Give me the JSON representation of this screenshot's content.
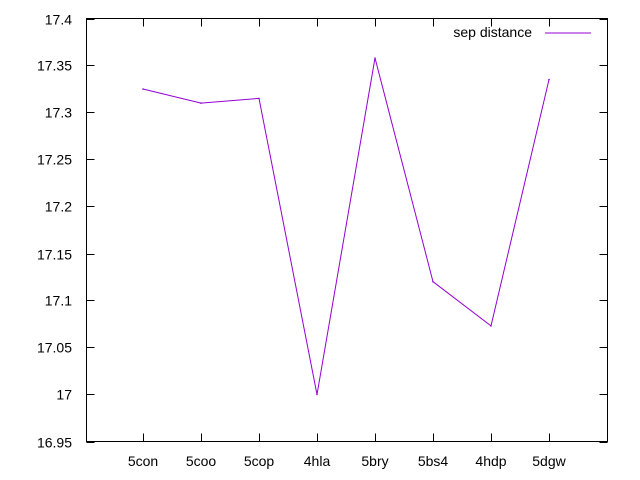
{
  "chart_data": {
    "type": "line",
    "title": "",
    "xlabel": "",
    "ylabel": "",
    "categories": [
      "5con",
      "5coo",
      "5cop",
      "4hla",
      "5bry",
      "5bs4",
      "4hdp",
      "5dgw"
    ],
    "series": [
      {
        "name": "sep distance",
        "color": "#9400d3",
        "values": [
          17.325,
          17.31,
          17.315,
          17.0,
          17.358,
          17.12,
          17.073,
          17.335
        ]
      }
    ],
    "ylim": [
      16.95,
      17.4
    ],
    "yticks": [
      "16.95",
      "17",
      "17.05",
      "17.1",
      "17.15",
      "17.2",
      "17.25",
      "17.3",
      "17.35",
      "17.4"
    ],
    "ytick_values": [
      16.95,
      17.0,
      17.05,
      17.1,
      17.15,
      17.2,
      17.25,
      17.3,
      17.35,
      17.4
    ],
    "grid": false,
    "legend_position": "top-right"
  }
}
